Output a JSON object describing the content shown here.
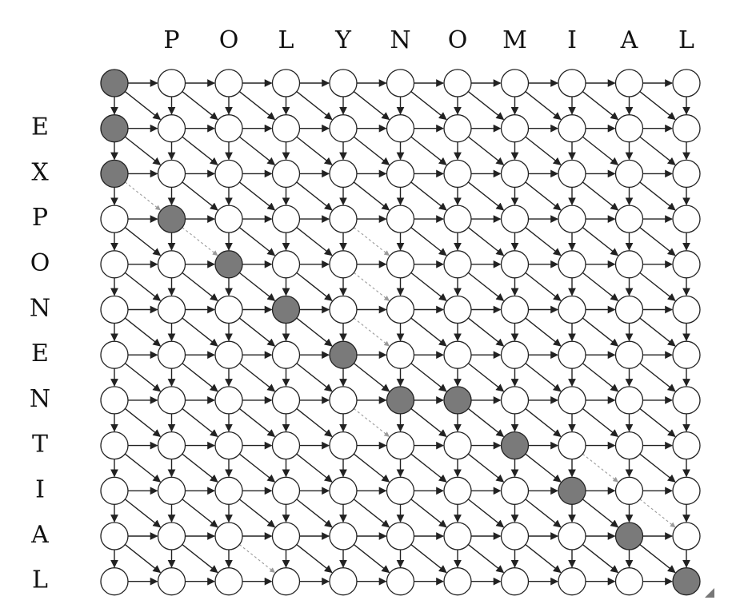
{
  "top_word": {
    "letters": [
      "P",
      "O",
      "L",
      "Y",
      "N",
      "O",
      "M",
      "I",
      "A",
      "L"
    ]
  },
  "side_word": {
    "letters": [
      "E",
      "X",
      "P",
      "O",
      "N",
      "E",
      "N",
      "T",
      "I",
      "A",
      "L"
    ]
  },
  "grid": {
    "columns": 11,
    "rows": 12,
    "highlighted_path": [
      [
        0,
        0
      ],
      [
        1,
        0
      ],
      [
        2,
        0
      ],
      [
        3,
        1
      ],
      [
        4,
        2
      ],
      [
        5,
        3
      ],
      [
        6,
        4
      ],
      [
        7,
        5
      ],
      [
        7,
        6
      ],
      [
        8,
        7
      ],
      [
        9,
        8
      ],
      [
        10,
        9
      ],
      [
        11,
        10
      ]
    ],
    "faint_diagonals": [
      [
        2,
        0
      ],
      [
        3,
        1
      ],
      [
        3,
        4
      ],
      [
        4,
        4
      ],
      [
        7,
        4
      ],
      [
        8,
        8
      ],
      [
        9,
        9
      ],
      [
        10,
        10
      ],
      [
        10,
        2
      ],
      [
        5,
        4
      ]
    ]
  },
  "colors": {
    "node_fill": "#ffffff",
    "highlight_fill": "#7a7a7a",
    "edge": "#222222",
    "letter": "#111111"
  }
}
